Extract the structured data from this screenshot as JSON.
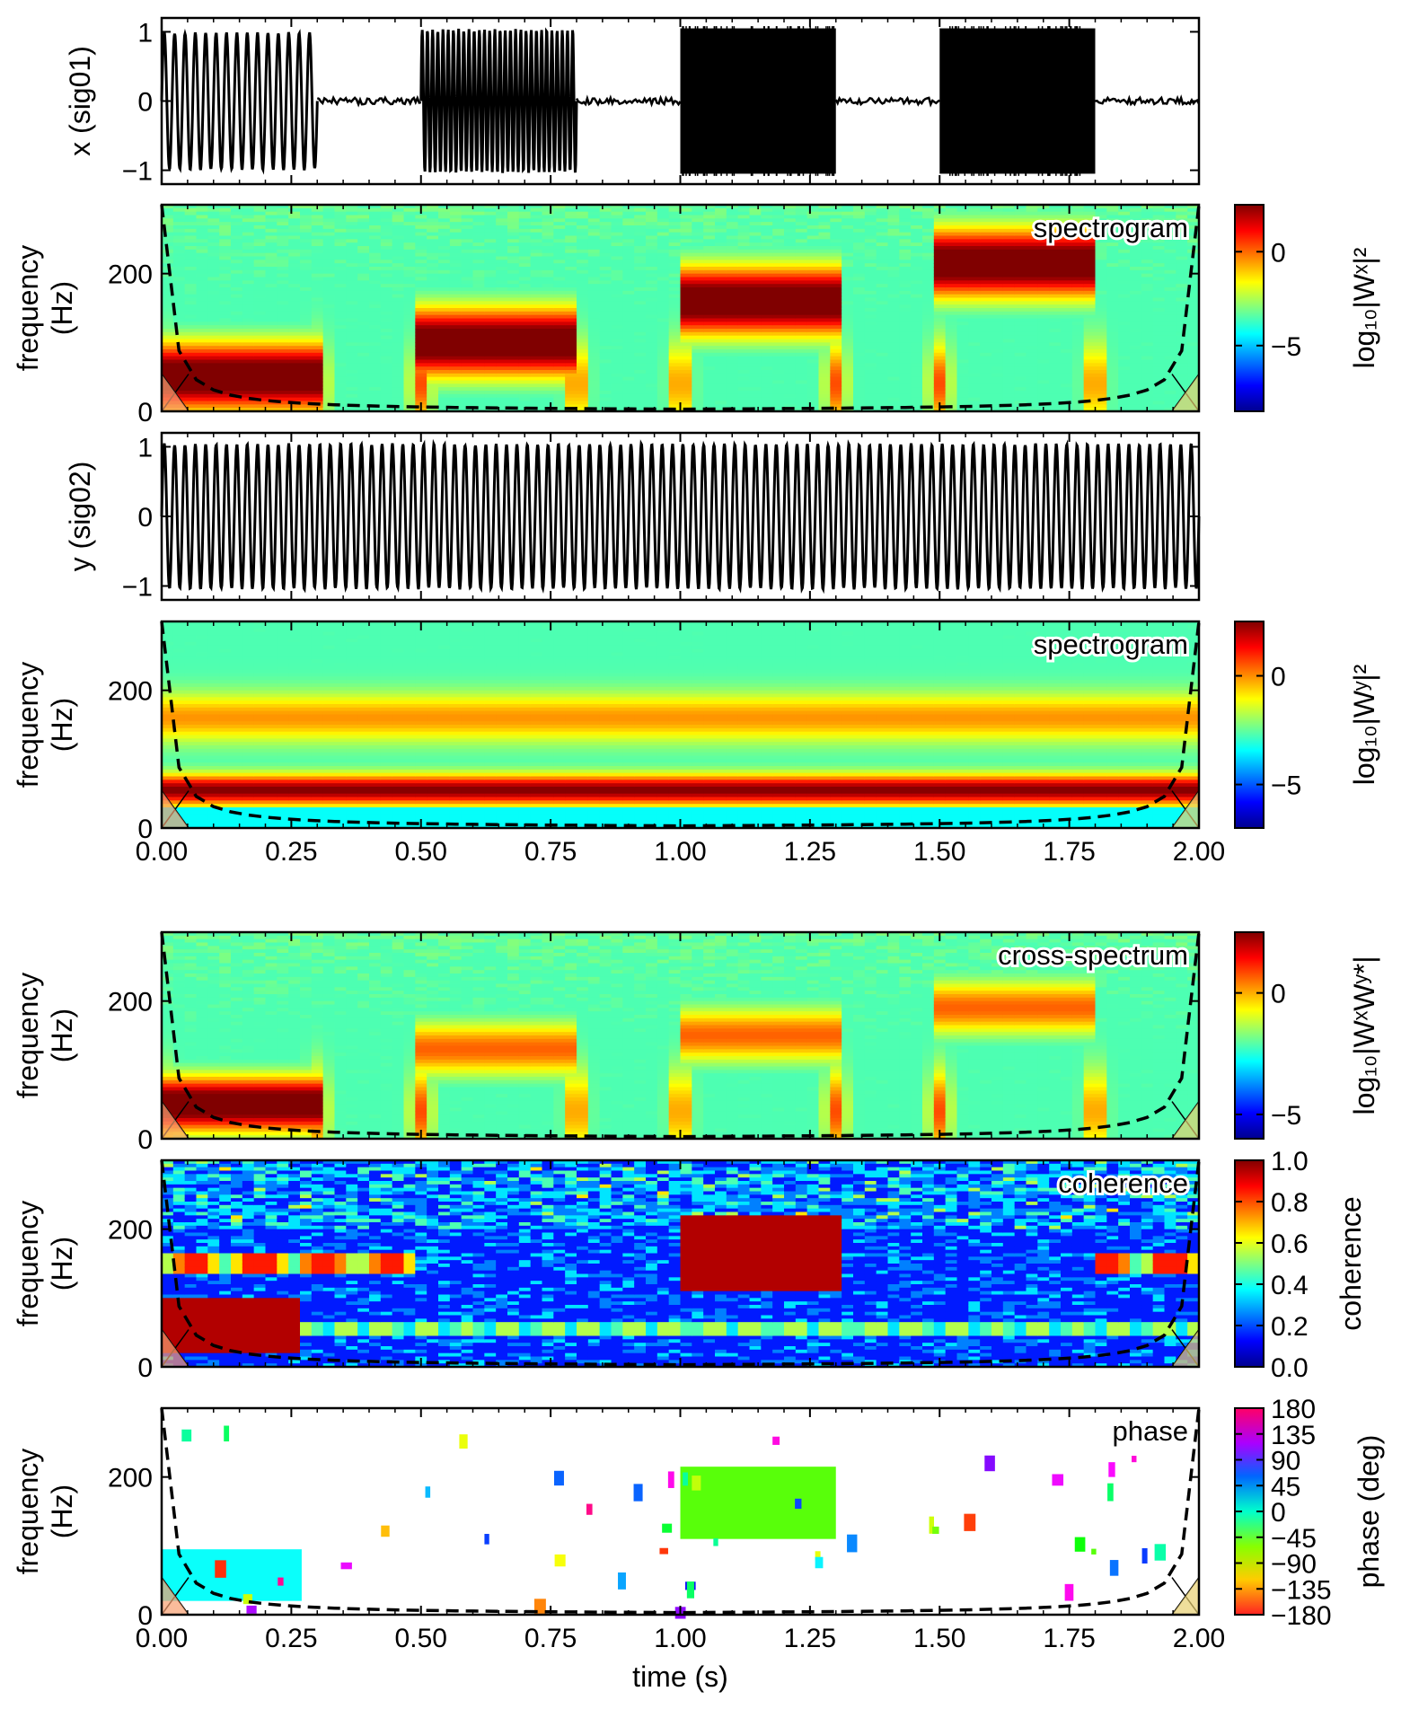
{
  "chart_data": [
    {
      "type": "line",
      "name": "signal-x",
      "ylabel": "x (sig01)",
      "ylim": [
        -1.2,
        1.2
      ],
      "yticks": [
        {
          "v": 1,
          "t": "1"
        },
        {
          "v": 0,
          "t": "0"
        },
        {
          "v": -1,
          "t": "−1"
        }
      ],
      "xlim": [
        0,
        2
      ],
      "segments": [
        {
          "t0": 0.0,
          "t1": 0.3,
          "amp": 1.0,
          "freq_hz": 50
        },
        {
          "t0": 0.3,
          "t1": 0.5,
          "amp": 0.06,
          "freq_hz": 0
        },
        {
          "t0": 0.5,
          "t1": 0.8,
          "amp": 1.05,
          "freq_hz": 100
        },
        {
          "t0": 0.8,
          "t1": 1.0,
          "amp": 0.06,
          "freq_hz": 0
        },
        {
          "t0": 1.0,
          "t1": 1.3,
          "amp": 1.05,
          "freq_hz": 150
        },
        {
          "t0": 1.3,
          "t1": 1.5,
          "amp": 0.06,
          "freq_hz": 0
        },
        {
          "t0": 1.5,
          "t1": 1.8,
          "amp": 1.05,
          "freq_hz": 200
        },
        {
          "t0": 1.8,
          "t1": 2.0,
          "amp": 0.06,
          "freq_hz": 0
        }
      ]
    },
    {
      "type": "heatmap",
      "name": "spectrogram-x",
      "tag": "spectrogram",
      "ylabel": [
        "frequency",
        "(Hz)"
      ],
      "ylim": [
        0,
        300
      ],
      "yticks": [
        {
          "v": 0,
          "t": "0"
        },
        {
          "v": 200,
          "t": "200"
        }
      ],
      "xlim": [
        0,
        2
      ],
      "colorbar": {
        "label": "log₁₀|Wˣ|²",
        "range": [
          -8.5,
          2.5
        ],
        "ticks": [
          {
            "v": 0,
            "t": "0"
          },
          {
            "v": -5,
            "t": "−5"
          }
        ]
      },
      "bands": [
        {
          "t0": 0.0,
          "t1": 0.3,
          "f": 50,
          "level": "high"
        },
        {
          "t0": 0.5,
          "t1": 0.8,
          "f": 100,
          "level": "high"
        },
        {
          "t0": 1.0,
          "t1": 1.3,
          "f": 160,
          "level": "high"
        },
        {
          "t0": 1.5,
          "t1": 1.8,
          "f": 215,
          "level": "high"
        }
      ]
    },
    {
      "type": "line",
      "name": "signal-y",
      "ylabel": "y (sig02)",
      "ylim": [
        -1.2,
        1.2
      ],
      "yticks": [
        {
          "v": 1,
          "t": "1"
        },
        {
          "v": 0,
          "t": "0"
        },
        {
          "v": -1,
          "t": "−1"
        }
      ],
      "xlim": [
        0,
        2
      ],
      "segments": [
        {
          "t0": 0.0,
          "t1": 2.0,
          "amp": 1.05,
          "freq_hz": 50
        }
      ]
    },
    {
      "type": "heatmap",
      "name": "spectrogram-y",
      "tag": "spectrogram",
      "ylabel": [
        "frequency",
        "(Hz)"
      ],
      "ylim": [
        0,
        300
      ],
      "yticks": [
        {
          "v": 0,
          "t": "0"
        },
        {
          "v": 200,
          "t": "200"
        }
      ],
      "xlim": [
        0,
        2
      ],
      "xticks": [
        "0.00",
        "0.25",
        "0.50",
        "0.75",
        "1.00",
        "1.25",
        "1.50",
        "1.75",
        "2.00"
      ],
      "colorbar": {
        "label": "log₁₀|Wʸ|²",
        "range": [
          -7,
          2.5
        ],
        "ticks": [
          {
            "v": 0,
            "t": "0"
          },
          {
            "v": -5,
            "t": "−5"
          }
        ]
      },
      "bands": [
        {
          "t0": 0.0,
          "t1": 2.0,
          "f": 50,
          "level": "high"
        },
        {
          "t0": 0.0,
          "t1": 2.0,
          "f": 150,
          "level": "medium"
        }
      ]
    },
    {
      "type": "heatmap",
      "name": "cross-spectrum",
      "tag": "cross-spectrum",
      "ylabel": [
        "frequency",
        "(Hz)"
      ],
      "ylim": [
        0,
        300
      ],
      "yticks": [
        {
          "v": 0,
          "t": "0"
        },
        {
          "v": 200,
          "t": "200"
        }
      ],
      "xlim": [
        0,
        2
      ],
      "colorbar": {
        "label": "log₁₀|WˣWʸ*|",
        "range": [
          -6,
          2.5
        ],
        "ticks": [
          {
            "v": 0,
            "t": "0"
          },
          {
            "v": -5,
            "t": "−5"
          }
        ]
      },
      "bands": [
        {
          "t0": 0.0,
          "t1": 0.3,
          "f": 50,
          "level": "high"
        },
        {
          "t0": 0.5,
          "t1": 0.8,
          "f": 130,
          "level": "medium"
        },
        {
          "t0": 1.0,
          "t1": 1.3,
          "f": 150,
          "level": "medium"
        },
        {
          "t0": 1.5,
          "t1": 1.8,
          "f": 190,
          "level": "medium"
        }
      ]
    },
    {
      "type": "heatmap",
      "name": "coherence",
      "tag": "coherence",
      "ylabel": [
        "frequency",
        "(Hz)"
      ],
      "ylim": [
        0,
        300
      ],
      "yticks": [
        {
          "v": 0,
          "t": "0"
        },
        {
          "v": 200,
          "t": "200"
        }
      ],
      "xlim": [
        0,
        2
      ],
      "colorbar": {
        "label": "coherence",
        "range": [
          0,
          1
        ],
        "ticks": [
          {
            "v": 1.0,
            "t": "1.0"
          },
          {
            "v": 0.8,
            "t": "0.8"
          },
          {
            "v": 0.6,
            "t": "0.6"
          },
          {
            "v": 0.4,
            "t": "0.4"
          },
          {
            "v": 0.2,
            "t": "0.2"
          },
          {
            "v": 0.0,
            "t": "0.0"
          }
        ]
      },
      "high_regions": [
        {
          "t0": 0.0,
          "t1": 0.27,
          "f0": 20,
          "f1": 100
        },
        {
          "t0": 1.0,
          "t1": 1.3,
          "f0": 110,
          "f1": 220
        }
      ]
    },
    {
      "type": "heatmap",
      "name": "phase",
      "tag": "phase",
      "ylabel": [
        "frequency",
        "(Hz)"
      ],
      "ylim": [
        0,
        300
      ],
      "yticks": [
        {
          "v": 0,
          "t": "0"
        },
        {
          "v": 200,
          "t": "200"
        }
      ],
      "xlim": [
        0,
        2
      ],
      "xticks": [
        "0.00",
        "0.25",
        "0.50",
        "0.75",
        "1.00",
        "1.25",
        "1.50",
        "1.75",
        "2.00"
      ],
      "xlabel": "time (s)",
      "colorbar": {
        "label": "phase (deg)",
        "range": [
          -180,
          180
        ],
        "ticks": [
          {
            "v": 180,
            "t": "180"
          },
          {
            "v": 135,
            "t": "135"
          },
          {
            "v": 90,
            "t": "90"
          },
          {
            "v": 45,
            "t": "45"
          },
          {
            "v": 0,
            "t": "0"
          },
          {
            "v": -45,
            "t": "−45"
          },
          {
            "v": -90,
            "t": "−90"
          },
          {
            "v": -135,
            "t": "−135"
          },
          {
            "v": -180,
            "t": "−180"
          }
        ]
      },
      "regions": [
        {
          "t0": 0.0,
          "t1": 0.27,
          "f0": 20,
          "f1": 95,
          "phase_deg": 15
        },
        {
          "t0": 1.0,
          "t1": 1.3,
          "f0": 110,
          "f1": 215,
          "phase_deg": -70
        }
      ]
    }
  ]
}
